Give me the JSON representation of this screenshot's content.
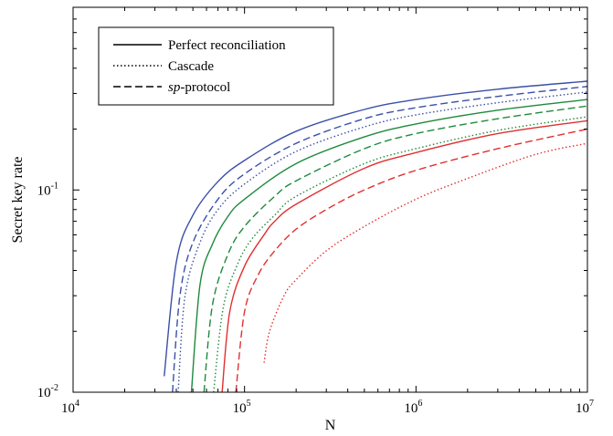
{
  "chart_data": {
    "type": "line",
    "title": "",
    "xlabel": "N",
    "ylabel": "Secret key rate",
    "xscale": "log",
    "yscale": "log",
    "xlim": [
      10000,
      10000000
    ],
    "ylim": [
      0.01,
      0.8
    ],
    "x_ticks": [
      {
        "base": "10",
        "exp": "4"
      },
      {
        "base": "10",
        "exp": "5"
      },
      {
        "base": "10",
        "exp": "6"
      },
      {
        "base": "10",
        "exp": "7"
      }
    ],
    "y_ticks": [
      {
        "base": "10",
        "exp": "-2"
      },
      {
        "base": "10",
        "exp": "-1"
      }
    ],
    "grid": false,
    "legend_position": "top-left",
    "legend": [
      {
        "label": "Perfect reconciliation",
        "style": "solid"
      },
      {
        "label": "Cascade",
        "style": "dotted"
      },
      {
        "label_italic": "sp",
        "label_rest": "-protocol",
        "style": "dashed"
      }
    ],
    "series": [
      {
        "color": "#3a4fa8",
        "style": "solid",
        "x": [
          34000,
          40000,
          50000,
          70000,
          100000,
          200000,
          500000,
          1000000,
          3000000,
          10000000
        ],
        "y": [
          0.012,
          0.044,
          0.075,
          0.11,
          0.14,
          0.195,
          0.25,
          0.28,
          0.315,
          0.345
        ]
      },
      {
        "color": "#3a4fa8",
        "style": "dashed",
        "x": [
          38000,
          42000,
          50000,
          70000,
          100000,
          200000,
          500000,
          1000000,
          3000000,
          10000000
        ],
        "y": [
          0.01,
          0.03,
          0.055,
          0.09,
          0.12,
          0.17,
          0.225,
          0.255,
          0.29,
          0.325
        ]
      },
      {
        "color": "#3a4fa8",
        "style": "dotted",
        "x": [
          41000,
          45000,
          55000,
          70000,
          100000,
          200000,
          500000,
          1000000,
          3000000,
          10000000
        ],
        "y": [
          0.01,
          0.03,
          0.055,
          0.08,
          0.107,
          0.155,
          0.205,
          0.235,
          0.27,
          0.305
        ]
      },
      {
        "color": "#1e8a3c",
        "style": "solid",
        "x": [
          49000,
          55000,
          65000,
          80000,
          100000,
          200000,
          500000,
          1000000,
          3000000,
          10000000
        ],
        "y": [
          0.01,
          0.034,
          0.054,
          0.074,
          0.09,
          0.135,
          0.183,
          0.212,
          0.248,
          0.28
        ]
      },
      {
        "color": "#1e8a3c",
        "style": "dashed",
        "x": [
          58000,
          65000,
          80000,
          100000,
          150000,
          200000,
          500000,
          1000000,
          3000000,
          10000000
        ],
        "y": [
          0.01,
          0.027,
          0.048,
          0.066,
          0.093,
          0.111,
          0.16,
          0.19,
          0.225,
          0.26
        ]
      },
      {
        "color": "#1e8a3c",
        "style": "dotted",
        "x": [
          66000,
          75000,
          90000,
          110000,
          150000,
          200000,
          500000,
          1000000,
          3000000,
          10000000
        ],
        "y": [
          0.01,
          0.026,
          0.042,
          0.057,
          0.075,
          0.093,
          0.135,
          0.16,
          0.197,
          0.23
        ]
      },
      {
        "color": "#e03030",
        "style": "solid",
        "x": [
          74000,
          82000,
          100000,
          130000,
          150000,
          200000,
          500000,
          1000000,
          3000000,
          10000000
        ],
        "y": [
          0.01,
          0.025,
          0.042,
          0.06,
          0.07,
          0.085,
          0.128,
          0.153,
          0.19,
          0.22
        ]
      },
      {
        "color": "#e03030",
        "style": "dashed",
        "x": [
          89000,
          100000,
          120000,
          150000,
          200000,
          300000,
          500000,
          1000000,
          3000000,
          10000000
        ],
        "y": [
          0.01,
          0.025,
          0.038,
          0.05,
          0.064,
          0.08,
          0.1,
          0.125,
          0.16,
          0.2
        ]
      },
      {
        "color": "#e03030",
        "style": "dotted",
        "x": [
          130000,
          140000,
          170000,
          200000,
          300000,
          500000,
          1000000,
          2000000,
          5000000,
          10000000
        ],
        "y": [
          0.014,
          0.02,
          0.03,
          0.036,
          0.05,
          0.066,
          0.09,
          0.114,
          0.15,
          0.17
        ]
      }
    ]
  }
}
